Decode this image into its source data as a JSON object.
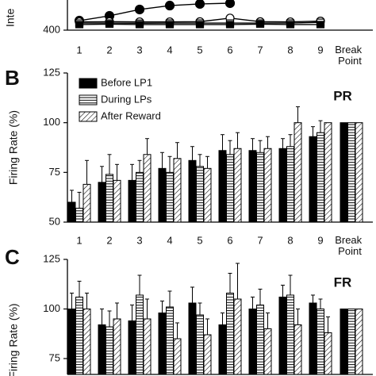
{
  "chart_data": [
    {
      "type": "line",
      "ylabel": "Inte",
      "categories": [
        "1",
        "2",
        "3",
        "4",
        "5",
        "6",
        "7",
        "8",
        "9",
        "Break Point"
      ],
      "ylim": [
        400,
        600
      ],
      "yticks": [
        400
      ],
      "series": [
        {
          "marker": "filled-circle",
          "color": "#000000",
          "values": [
            463,
            495,
            537,
            563,
            574,
            579,
            null,
            null,
            null,
            null
          ]
        },
        {
          "marker": "open-circle",
          "color": "#000000",
          "values": [
            455,
            456,
            455,
            455,
            456,
            480,
            456,
            455,
            460,
            null
          ]
        },
        {
          "marker": "open-square",
          "color": "#000000",
          "values": [
            447,
            447,
            446,
            447,
            447,
            447,
            447,
            447,
            452,
            null
          ]
        },
        {
          "marker": "filled-square",
          "color": "#000000",
          "values": [
            437,
            440,
            437,
            437,
            437,
            437,
            440,
            437,
            437,
            null
          ]
        }
      ]
    },
    {
      "type": "bar",
      "panel": "B",
      "tag": "PR",
      "ylabel": "Firing Rate (%)",
      "legend": true,
      "categories": [
        "1",
        "2",
        "3",
        "4",
        "5",
        "6",
        "7",
        "8",
        "9",
        "Break Point"
      ],
      "ylim": [
        50,
        125
      ],
      "yticks": [
        50,
        75,
        100,
        125
      ],
      "series": [
        {
          "name": "Before LP1",
          "pattern": "solid",
          "values": [
            60,
            70,
            71,
            77,
            81,
            86,
            86,
            87,
            93,
            100
          ],
          "errors": [
            6,
            8,
            8,
            8,
            7,
            8,
            6,
            5,
            5,
            null
          ]
        },
        {
          "name": "During LPs",
          "pattern": "horizontal",
          "values": [
            57,
            74,
            75,
            75,
            78,
            84,
            85,
            88,
            95,
            100
          ],
          "errors": [
            8,
            10,
            6,
            8,
            6,
            7,
            6,
            6,
            6,
            null
          ]
        },
        {
          "name": "After Reward",
          "pattern": "diagonal",
          "values": [
            69,
            71,
            84,
            82,
            77,
            87,
            87,
            100,
            100,
            100
          ],
          "errors": [
            12,
            8,
            8,
            8,
            6,
            8,
            6,
            8,
            null,
            null
          ]
        }
      ]
    },
    {
      "type": "bar",
      "panel": "C",
      "tag": "FR",
      "ylabel": "Firing Rate (%)",
      "categories": [
        "1",
        "2",
        "3",
        "4",
        "5",
        "6",
        "7",
        "8",
        "9",
        "Break Point"
      ],
      "ylim": [
        67,
        125
      ],
      "yticks": [
        75,
        100,
        125
      ],
      "series": [
        {
          "name": "Before LP1",
          "pattern": "solid",
          "values": [
            100,
            92,
            94,
            98,
            103,
            92,
            100,
            106,
            103,
            100
          ],
          "errors": [
            8,
            8,
            8,
            6,
            8,
            6,
            6,
            6,
            4,
            null
          ]
        },
        {
          "name": "During LPs",
          "pattern": "horizontal",
          "values": [
            106,
            91,
            107,
            101,
            97,
            108,
            102,
            107,
            100,
            100
          ],
          "errors": [
            8,
            8,
            10,
            8,
            6,
            10,
            8,
            10,
            5,
            null
          ]
        },
        {
          "name": "After Reward",
          "pattern": "diagonal",
          "values": [
            100,
            95,
            95,
            85,
            87,
            105,
            90,
            92,
            88,
            100
          ],
          "errors": [
            8,
            8,
            10,
            8,
            8,
            18,
            8,
            8,
            8,
            null
          ]
        }
      ]
    }
  ]
}
